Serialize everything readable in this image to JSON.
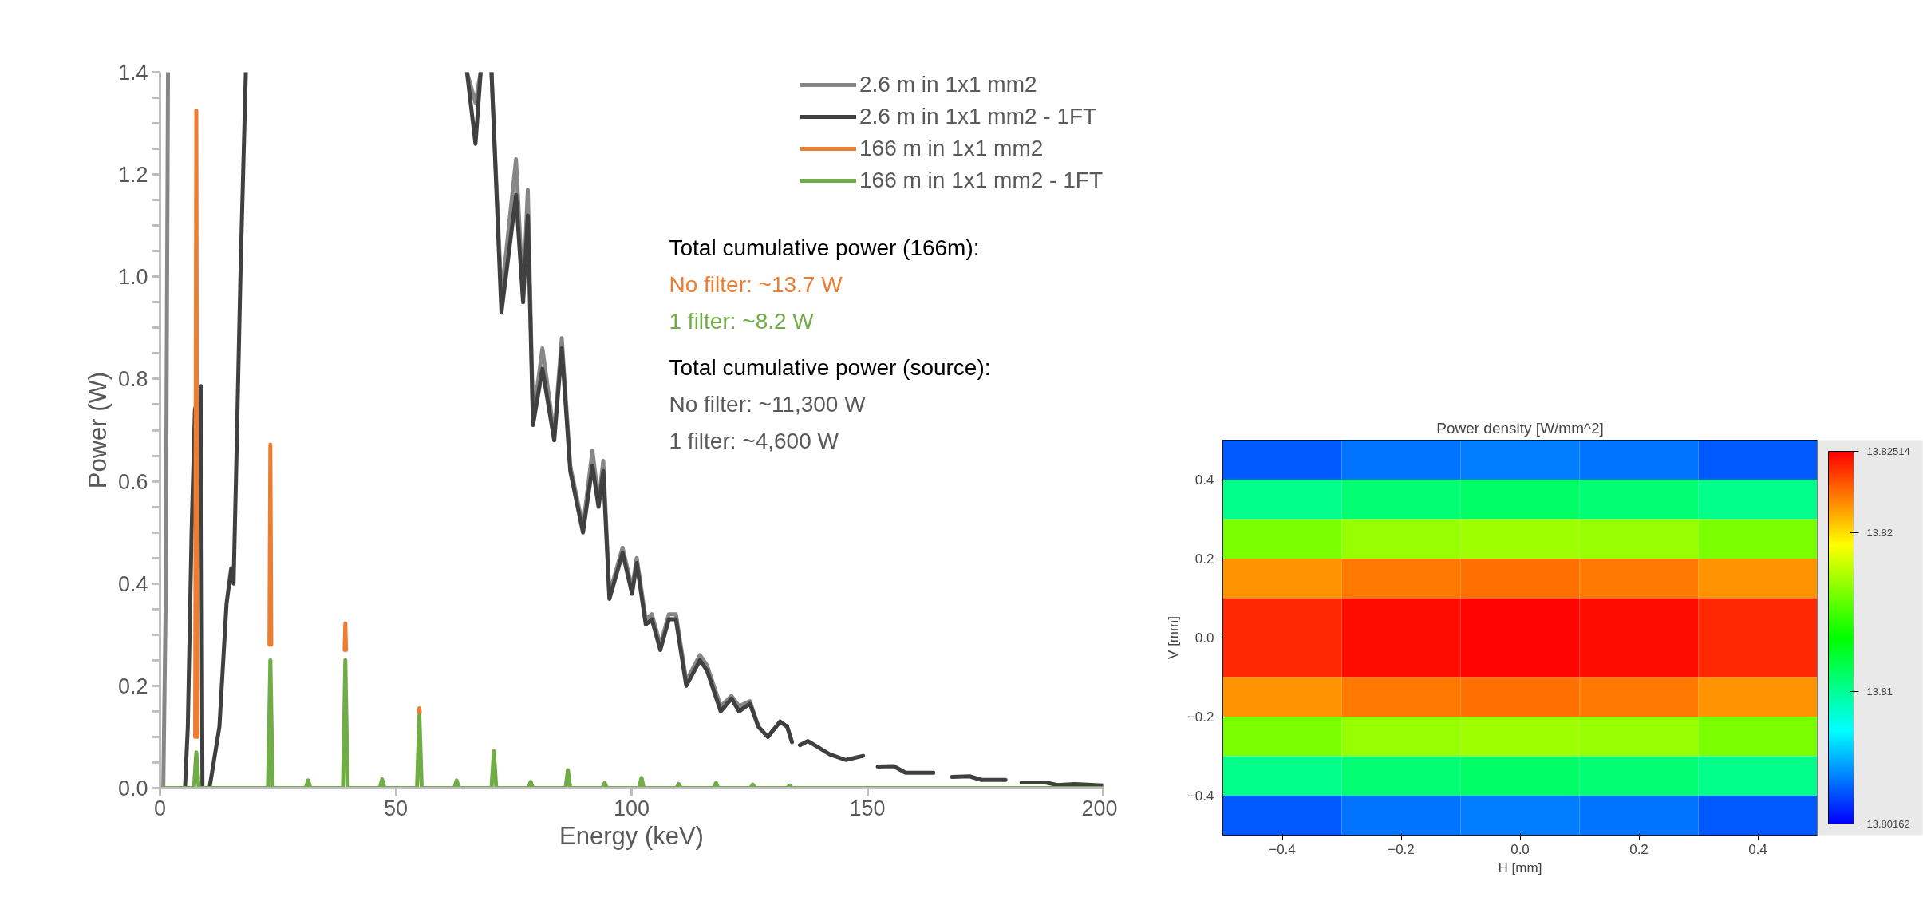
{
  "chart_data": [
    {
      "type": "line",
      "xlabel": "Energy (keV)",
      "ylabel": "Power (W)",
      "xlim": [
        0,
        200
      ],
      "ylim": [
        0,
        1.4
      ],
      "xticks": [
        0,
        50,
        100,
        150,
        200
      ],
      "yticks": [
        {
          "value": 0,
          "label": "0.0"
        },
        0.2,
        0.4,
        0.6,
        0.8,
        {
          "value": 1,
          "label": "1.0"
        },
        1.2,
        1.4
      ],
      "legend": "top right",
      "series": [
        {
          "name": "2.6 m in 1x1 mm2",
          "color": "#878787",
          "x": [
            0,
            0.7,
            1.2,
            1.7,
            1.8,
            65.1,
            66.9,
            68.0,
            69.0,
            70.3,
            72.4,
            75.5,
            77.0,
            78.0,
            79.1,
            81.1,
            83.6,
            85.2,
            87.0,
            89.7,
            91.7,
            93.0,
            94.0,
            95.3,
            98.1,
            100.1,
            101.1,
            103.0,
            104.3,
            106.1,
            107.9,
            109.4,
            111.6,
            114.5,
            116.0,
            118.9,
            121.2,
            122.8,
            125.1,
            126.9,
            128.9,
            131.5,
            133.0,
            134.0
          ],
          "values": [
            0,
            0,
            0.36,
            1.4,
            null,
            1.4,
            1.34,
            1.4,
            null,
            1.4,
            0.96,
            1.23,
            0.96,
            1.17,
            0.72,
            0.86,
            0.69,
            0.88,
            0.63,
            0.51,
            0.66,
            0.56,
            0.64,
            0.38,
            0.47,
            0.39,
            0.45,
            0.33,
            0.34,
            0.28,
            0.34,
            0.34,
            0.21,
            0.26,
            0.24,
            0.16,
            0.18,
            0.16,
            0.17,
            0.12,
            0.1,
            0.13,
            0.12,
            0.09
          ]
        },
        {
          "name": "2.6 m in 1x1 mm2 - 1FT",
          "color": "#404040",
          "x": [
            0,
            5.3,
            5.9,
            6.7,
            7.4,
            8.7,
            9.0,
            10.5,
            12.6,
            14.1,
            15.1,
            15.6,
            16.1,
            17.1,
            18.2,
            18.3,
            65.1,
            66.9,
            68.0,
            69.0,
            70.3,
            72.4,
            75.5,
            77.0,
            78.0,
            79.1,
            81.1,
            83.6,
            85.2,
            87.0,
            89.7,
            91.7,
            93.0,
            94.0,
            95.3,
            98.1,
            100.1,
            101.1,
            103.0,
            104.3,
            106.1,
            107.9,
            109.4,
            111.6,
            114.5,
            116.0,
            118.9,
            121.2,
            122.8,
            125.1,
            126.9,
            128.9,
            131.5,
            133.0,
            134.0,
            134.8,
            135.7,
            137.4,
            142.0,
            145.4,
            149.1,
            150.6,
            152.2,
            155.6,
            158.1,
            164.0,
            166.0,
            167.9,
            171.7,
            174.2,
            179.3,
            181.0,
            182.7,
            187.8,
            190.3,
            194.0,
            200
          ],
          "values": [
            0,
            0,
            0.12,
            0.5,
            0.74,
            0.786,
            0,
            0,
            0.12,
            0.36,
            0.43,
            0.4,
            0.6,
            1.02,
            1.4,
            null,
            1.4,
            1.26,
            1.4,
            null,
            1.4,
            0.93,
            1.16,
            0.95,
            1.12,
            0.71,
            0.82,
            0.68,
            0.86,
            0.62,
            0.5,
            0.63,
            0.55,
            0.62,
            0.37,
            0.46,
            0.38,
            0.44,
            0.32,
            0.33,
            0.27,
            0.33,
            0.33,
            0.2,
            0.25,
            0.23,
            0.15,
            0.175,
            0.15,
            0.165,
            0.12,
            0.1,
            0.13,
            0.12,
            0.09,
            null,
            0.084,
            0.092,
            0.066,
            0.055,
            0.063,
            null,
            0.042,
            0.043,
            0.03,
            0.03,
            null,
            0.022,
            0.023,
            0.016,
            0.016,
            null,
            0.011,
            0.011,
            0.006,
            0.008,
            0.005
          ]
        },
        {
          "name": "166 m in 1x1 mm2",
          "color": "#ed7d31",
          "x": [
            7.45,
            7.7,
            7.95,
            8.5,
            23.2,
            23.4,
            23.6,
            24.5,
            39.15,
            39.3,
            39.45,
            40.5,
            54.9,
            55.0,
            55.1
          ],
          "values": [
            0.1,
            1.325,
            0.1,
            null,
            0.28,
            0.672,
            0.28,
            null,
            0.27,
            0.322,
            0.27,
            null,
            0.148,
            0.156,
            0.148
          ]
        },
        {
          "name": "166 m in 1x1 mm2 - 1FT",
          "color": "#70ad47",
          "x": [
            0,
            7.2,
            7.7,
            8.2,
            22.9,
            23.4,
            23.9,
            30.9,
            31.4,
            31.9,
            38.8,
            39.3,
            39.8,
            46.6,
            47.1,
            47.6,
            54.5,
            55.0,
            55.5,
            62.4,
            62.9,
            63.4,
            70.3,
            70.8,
            71.3,
            78.1,
            78.6,
            79.1,
            86.0,
            86.5,
            87.0,
            93.8,
            94.3,
            94.8,
            101.6,
            102.1,
            102.6,
            109.5,
            110.0,
            110.5,
            117.4,
            117.9,
            118.4,
            125.2,
            125.7,
            126.2,
            133.0,
            133.5,
            134.0,
            200
          ],
          "values": [
            0,
            0,
            0.07,
            0,
            0,
            0.25,
            0,
            0,
            0.015,
            0,
            0,
            0.25,
            0,
            0,
            0.017,
            0,
            0,
            0.142,
            0,
            0,
            0.015,
            0,
            0,
            0.072,
            0,
            0,
            0.012,
            0,
            0,
            0.035,
            0,
            0,
            0.01,
            0,
            0,
            0.02,
            0,
            0,
            0.008,
            0,
            0,
            0.01,
            0,
            0,
            0.007,
            0,
            0,
            0.005,
            0,
            0
          ]
        }
      ],
      "annotations": [
        "Total cumulative power (166m):",
        "No filter: ~13.7 W",
        "1 filter: ~8.2 W",
        "Total cumulative power (source):",
        "No filter: ~11,300 W",
        "1 filter: ~4,600 W"
      ]
    },
    {
      "type": "heatmap",
      "title": "Power density [W/mm^2]",
      "xlabel": "H [mm]",
      "ylabel": "V [mm]",
      "xlim": [
        -0.5,
        0.5
      ],
      "ylim": [
        -0.5,
        0.5
      ],
      "xticks": [
        {
          "value": -0.4,
          "label": "−0.4"
        },
        {
          "value": -0.2,
          "label": "−0.2"
        },
        {
          "value": 0,
          "label": "0.0"
        },
        0.2,
        0.4
      ],
      "yticks": [
        {
          "value": -0.4,
          "label": "−0.4"
        },
        {
          "value": -0.2,
          "label": "−0.2"
        },
        {
          "value": 0,
          "label": "0.0"
        },
        0.2,
        0.4
      ],
      "x": [
        -0.4,
        -0.2,
        0,
        0.2,
        0.4
      ],
      "y": [
        0.45,
        0.35,
        0.25,
        0.15,
        0.05,
        -0.05,
        -0.15,
        -0.25,
        -0.35,
        -0.45
      ],
      "cells": [
        [
          13.8037,
          13.8043,
          13.8045,
          13.8043,
          13.8037
        ],
        [
          13.8102,
          13.8108,
          13.811,
          13.8108,
          13.8102
        ],
        [
          13.8162,
          13.8168,
          13.817,
          13.8168,
          13.8162
        ],
        [
          13.8217,
          13.8223,
          13.8225,
          13.8223,
          13.8217
        ],
        [
          13.8242,
          13.8248,
          13.825,
          13.8248,
          13.8242
        ],
        [
          13.8242,
          13.8248,
          13.825,
          13.8248,
          13.8242
        ],
        [
          13.8217,
          13.8223,
          13.8225,
          13.8223,
          13.8217
        ],
        [
          13.8162,
          13.8168,
          13.817,
          13.8168,
          13.8162
        ],
        [
          13.8102,
          13.8108,
          13.811,
          13.8108,
          13.8102
        ],
        [
          13.8037,
          13.8043,
          13.8045,
          13.8043,
          13.8037
        ]
      ],
      "clim": [
        13.80162,
        13.82514
      ],
      "cticks": [
        13.80162,
        13.81,
        13.82,
        13.82514
      ]
    }
  ]
}
